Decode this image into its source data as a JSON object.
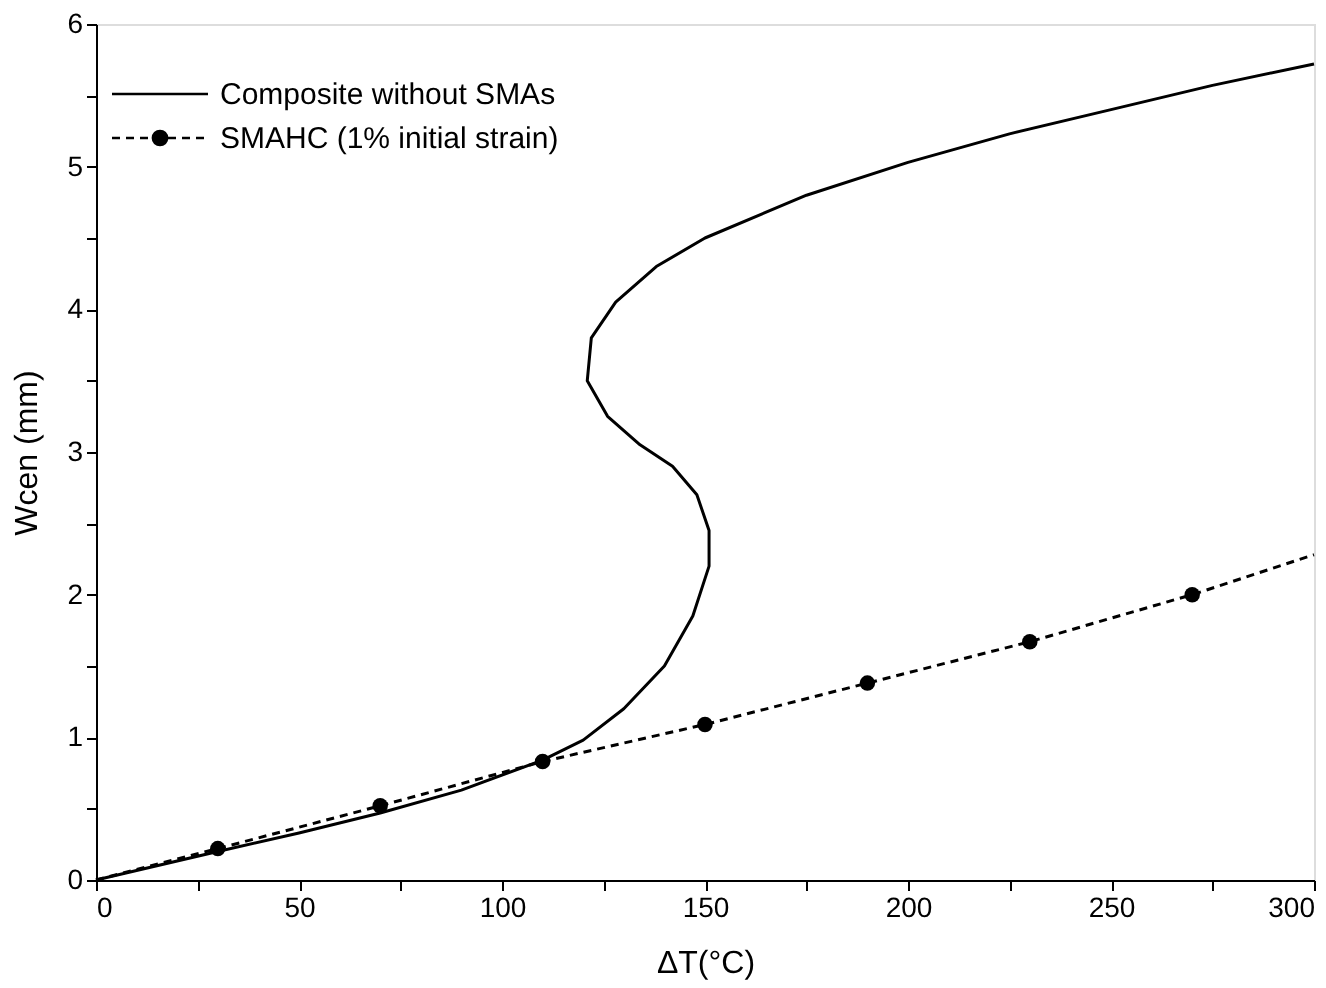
{
  "chart_data": {
    "type": "line",
    "xlabel": "ΔT(°C)",
    "ylabel": "Wcen (mm)",
    "xlim": [
      0,
      300
    ],
    "ylim": [
      0,
      6
    ],
    "xticks": [
      0,
      {
        "value": 25,
        "label": null
      },
      50,
      {
        "value": 75,
        "label": null
      },
      100,
      {
        "value": 125,
        "label": null
      },
      150,
      {
        "value": 175,
        "label": null
      },
      200,
      {
        "value": 225,
        "label": null
      },
      250,
      {
        "value": 275,
        "label": null
      },
      300
    ],
    "yticks": [
      0,
      {
        "value": 0.5,
        "label": null
      },
      1,
      {
        "value": 1.5,
        "label": null
      },
      2,
      {
        "value": 2.5,
        "label": null
      },
      3,
      {
        "value": 3.5,
        "label": null
      },
      4,
      {
        "value": 4.5,
        "label": null
      },
      5,
      {
        "value": 5.5,
        "label": null
      },
      6
    ],
    "grid": false,
    "legend": "top left",
    "series": [
      {
        "name": "Composite without SMAs",
        "color": "#000000",
        "line_style": "solid",
        "marker": "none",
        "x": [
          0,
          30,
          50,
          70,
          90,
          110,
          120,
          130,
          140,
          147,
          151,
          151,
          148,
          142,
          134,
          126,
          121,
          122,
          128,
          138,
          150,
          175,
          200,
          225,
          250,
          275,
          300
        ],
        "values": [
          0,
          0.2,
          0.33,
          0.47,
          0.63,
          0.84,
          0.98,
          1.2,
          1.5,
          1.85,
          2.2,
          2.45,
          2.7,
          2.9,
          3.05,
          3.25,
          3.5,
          3.8,
          4.05,
          4.3,
          4.5,
          4.8,
          5.03,
          5.23,
          5.4,
          5.57,
          5.72
        ]
      },
      {
        "type": "line",
        "color": "#000000",
        "line_style": "dashed",
        "marker": "none",
        "x": [
          0,
          30,
          70,
          110,
          150,
          190,
          230,
          270,
          300
        ],
        "values": [
          0,
          0.22,
          0.52,
          0.83,
          1.09,
          1.38,
          1.67,
          2.0,
          2.28
        ]
      },
      {
        "name": "SMAHC (1% initial strain)",
        "type": "scatter",
        "color": "#000000",
        "marker": "circle",
        "x": [
          30,
          70,
          110,
          150,
          190,
          230,
          270
        ],
        "values": [
          0.22,
          0.52,
          0.83,
          1.09,
          1.38,
          1.67,
          2.0
        ]
      }
    ]
  }
}
